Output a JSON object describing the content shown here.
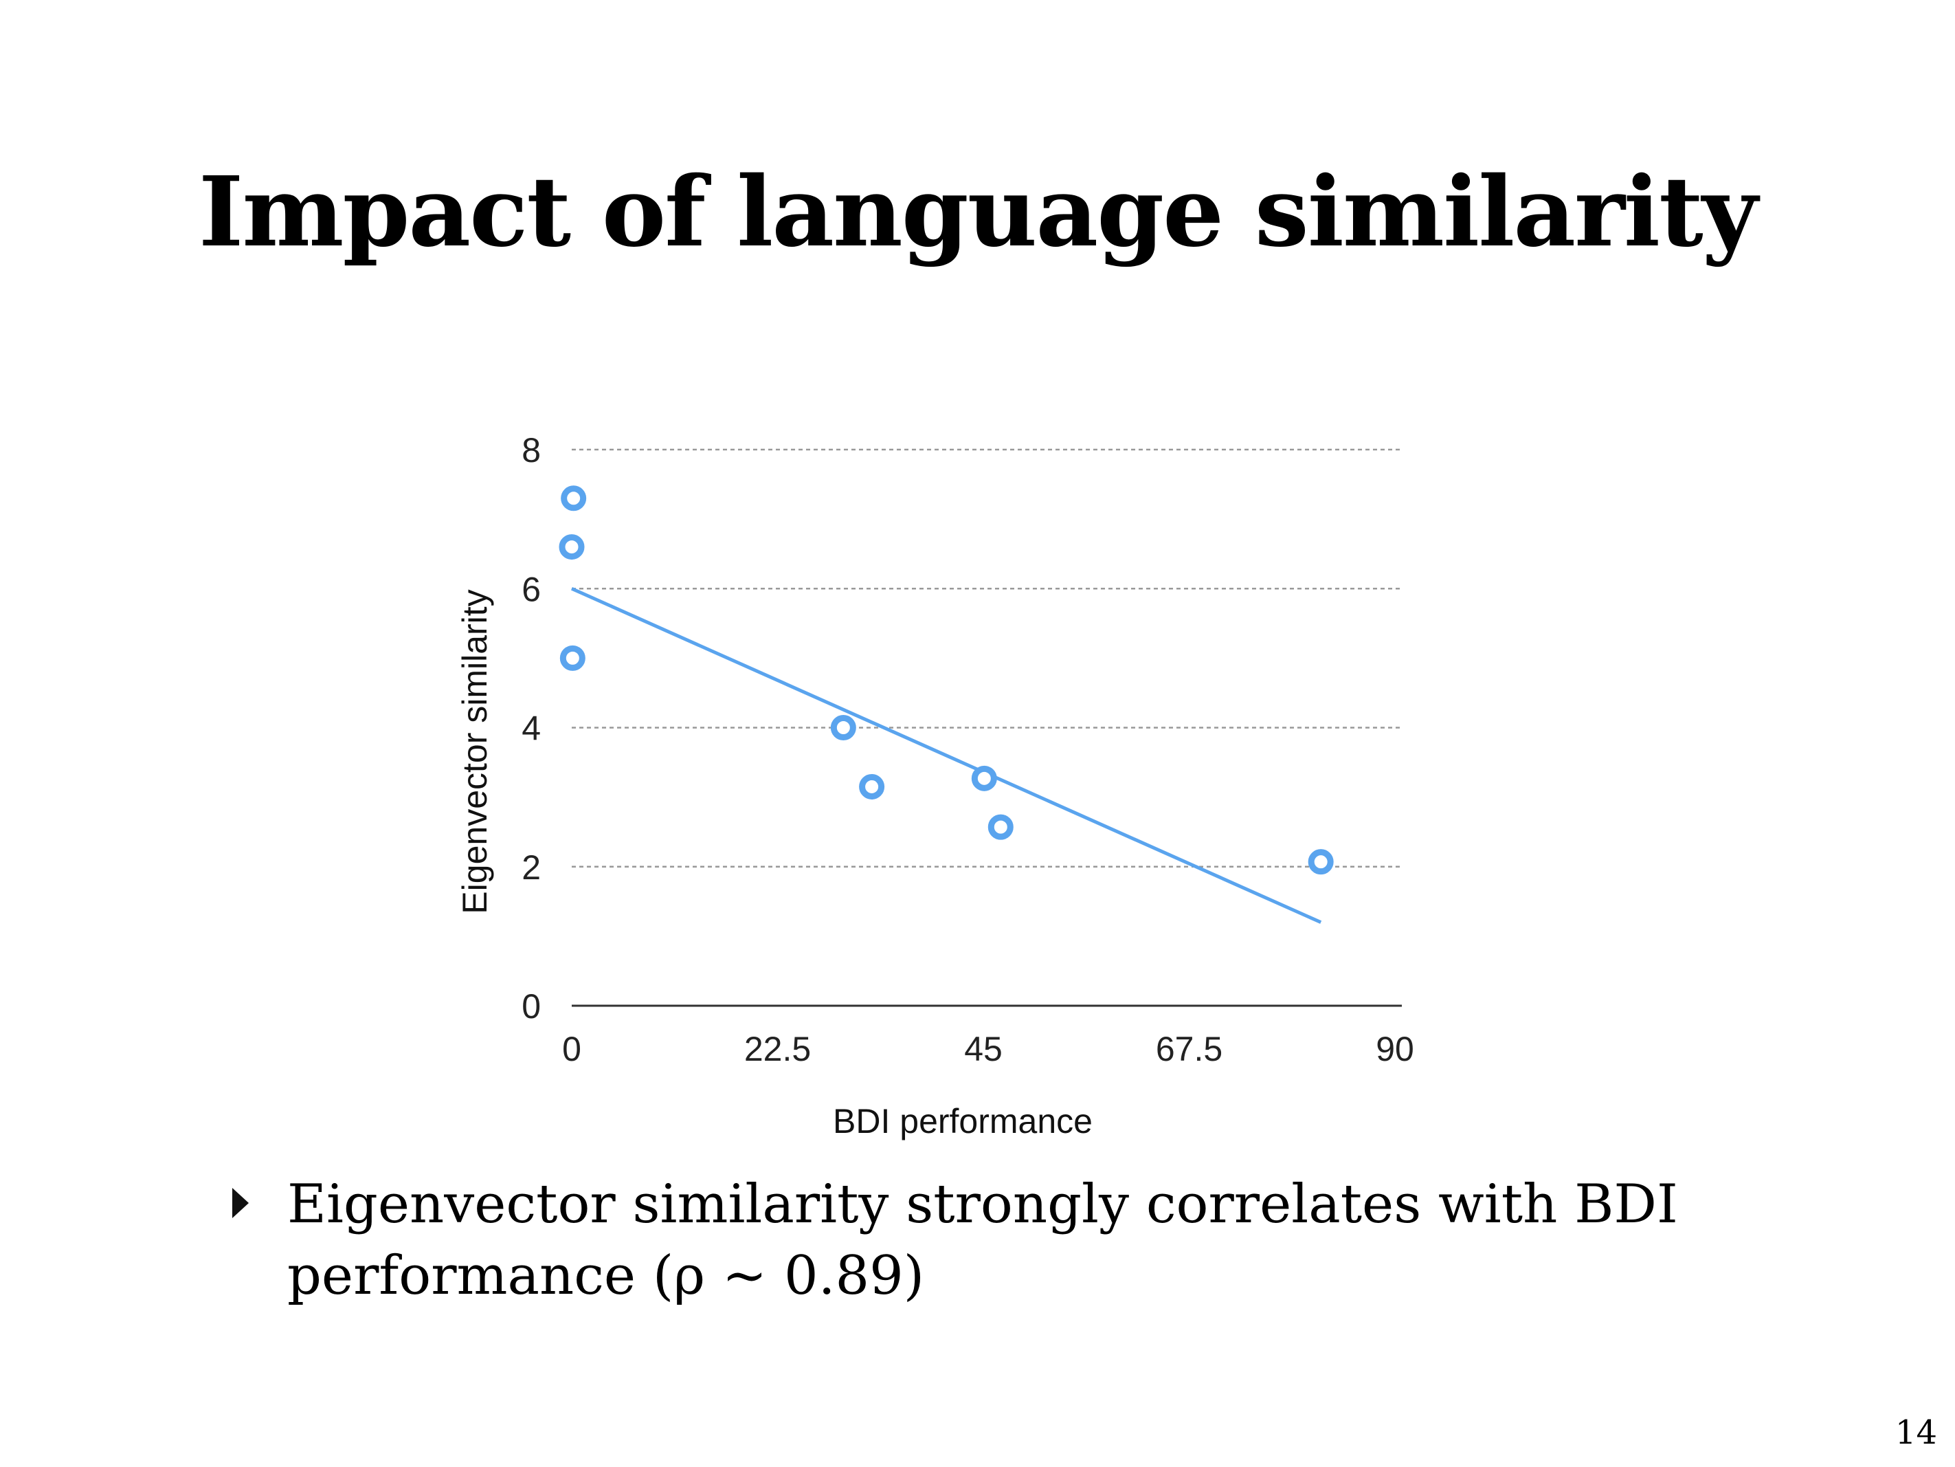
{
  "slide": {
    "title": "Impact of language similarity",
    "bullet_text": "Eigenvector similarity strongly correlates with BDI performance (ρ ~ 0.89)",
    "page_number": "14"
  },
  "colors": {
    "accent": "#5aa4ee",
    "grid": "#999999",
    "text": "#000000"
  },
  "chart_data": {
    "type": "scatter",
    "title": "",
    "xlabel": "BDI performance",
    "ylabel": "Eigenvector similarity",
    "xlim": [
      0,
      90
    ],
    "ylim": [
      0,
      8
    ],
    "xticks": [
      "0",
      "22.5",
      "45",
      "67.5",
      "90"
    ],
    "yticks": [
      "0",
      "2",
      "4",
      "6",
      "8"
    ],
    "grid": "horizontal dashed",
    "legend": "none",
    "points": [
      {
        "x": 0.2,
        "y": 7.3
      },
      {
        "x": 0.0,
        "y": 6.6
      },
      {
        "x": 0.1,
        "y": 5.0
      },
      {
        "x": 29.7,
        "y": 4.0
      },
      {
        "x": 32.8,
        "y": 3.15
      },
      {
        "x": 45.1,
        "y": 3.27
      },
      {
        "x": 46.9,
        "y": 2.57
      },
      {
        "x": 81.9,
        "y": 2.07
      }
    ],
    "trendline": {
      "x": [
        0,
        81.9
      ],
      "y": [
        6.0,
        1.2
      ]
    }
  }
}
